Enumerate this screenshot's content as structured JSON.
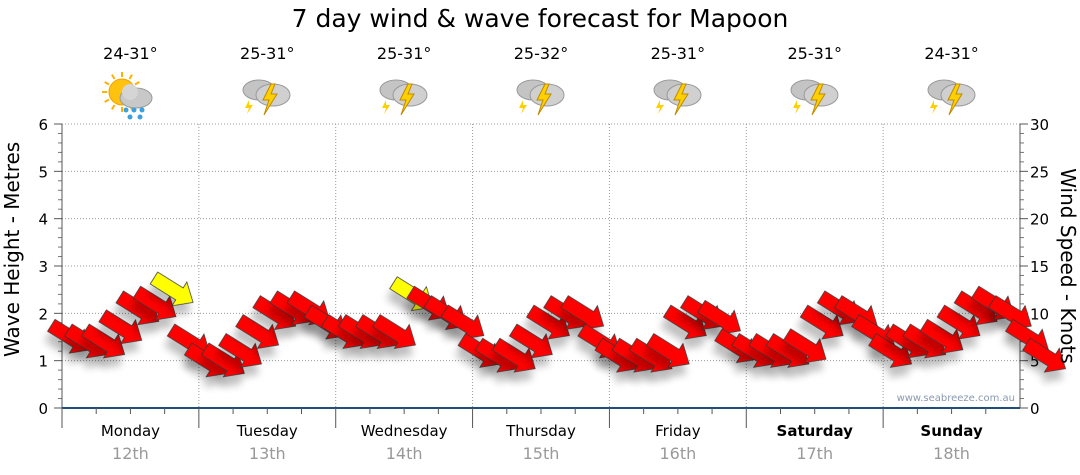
{
  "title": "7 day wind & wave forecast for Mapoon",
  "watermark": "www.seabreeze.com.au",
  "days": [
    {
      "name": "Monday",
      "date": "12th",
      "temp": "24-31°",
      "icon": "sun-cloud-rain-icon",
      "bold": false
    },
    {
      "name": "Tuesday",
      "date": "13th",
      "temp": "25-31°",
      "icon": "thunderstorm-icon",
      "bold": false
    },
    {
      "name": "Wednesday",
      "date": "14th",
      "temp": "25-31°",
      "icon": "thunderstorm-icon",
      "bold": false
    },
    {
      "name": "Thursday",
      "date": "15th",
      "temp": "25-32°",
      "icon": "thunderstorm-icon",
      "bold": false
    },
    {
      "name": "Friday",
      "date": "16th",
      "temp": "25-31°",
      "icon": "thunderstorm-icon",
      "bold": false
    },
    {
      "name": "Saturday",
      "date": "17th",
      "temp": "25-31°",
      "icon": "thunderstorm-icon",
      "bold": true
    },
    {
      "name": "Sunday",
      "date": "18th",
      "temp": "24-31°",
      "icon": "thunderstorm-icon",
      "bold": true
    }
  ],
  "chart_data": {
    "type": "scatter",
    "title": "7 day wind & wave forecast for Mapoon",
    "ylabel_left": "Wave Height - Metres",
    "ylabel_right": "Wind Speed - Knots",
    "ylim_left": [
      0,
      6
    ],
    "ylim_right": [
      0,
      30
    ],
    "yticks_left": [
      "0",
      "1",
      "2",
      "3",
      "4",
      "5",
      "6"
    ],
    "yticks_right": [
      "0",
      "5",
      "10",
      "15",
      "20",
      "25",
      "30"
    ],
    "grid": true,
    "colors": {
      "normal": "#ff0000",
      "strong": "#ffff00",
      "axis": "#1f4e79"
    },
    "strong_threshold_knots": 12,
    "wind_direction_deg_from_horizontal": 32,
    "wind_knots": [
      7.5,
      7,
      7,
      8.5,
      10.5,
      11,
      12.5,
      7,
      5,
      5,
      6,
      8,
      10,
      10.5,
      10.5,
      9,
      8,
      8,
      8,
      8,
      12,
      11,
      10,
      9,
      6,
      5.5,
      5.5,
      7,
      9,
      10,
      10,
      7,
      5.5,
      5.5,
      5.5,
      6,
      9,
      10,
      9.5,
      6.5,
      6,
      6,
      6,
      6.5,
      9,
      10.5,
      10,
      8,
      6,
      7,
      7,
      7.5,
      9,
      10.5,
      11,
      10,
      7.5,
      5.5
    ]
  }
}
